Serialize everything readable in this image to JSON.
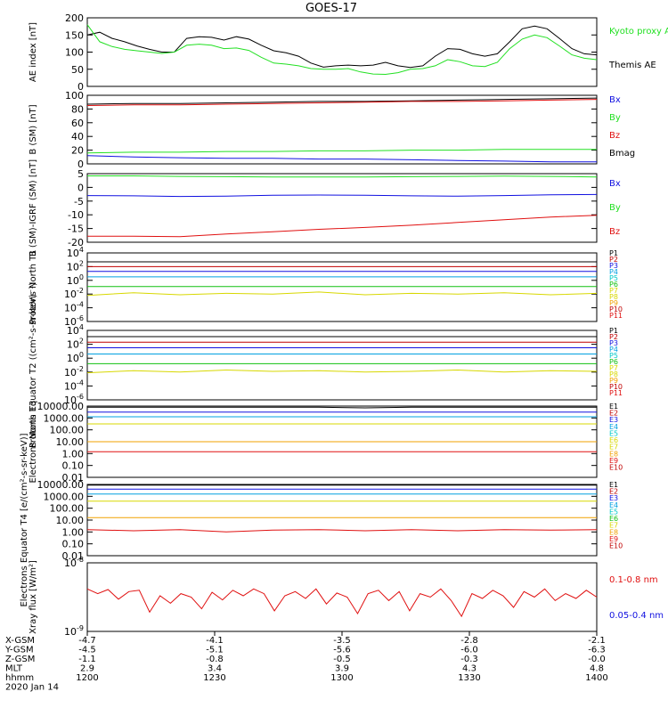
{
  "title": "GOES-17",
  "colors": {
    "black": "#000000",
    "green": "#22e022",
    "red": "#e01010",
    "blue": "#1010e0",
    "darkred": "#c00000",
    "navy": "#00008b",
    "cyan": "#00c8c8",
    "teal": "#00b0a0",
    "lime": "#10c010",
    "yellow": "#d8d800",
    "orange": "#f0a000",
    "maroon": "#c00000"
  },
  "chart_data": [
    {
      "type": "line",
      "ylabel": "AE index [nT]",
      "ylim": [
        0,
        200
      ],
      "y_ticks": [
        "0",
        "50",
        "100",
        "150",
        "200"
      ],
      "legend": [
        {
          "label": "Kyoto proxy AE",
          "color": "#22e022"
        },
        {
          "label": "Themis AE",
          "color": "#000000"
        }
      ],
      "series": [
        {
          "name": "Themis AE",
          "color": "#000000",
          "values": [
            150,
            158,
            140,
            130,
            118,
            108,
            100,
            100,
            140,
            145,
            143,
            135,
            145,
            138,
            120,
            104,
            98,
            88,
            68,
            56,
            60,
            62,
            60,
            62,
            70,
            60,
            55,
            60,
            88,
            110,
            108,
            95,
            88,
            95,
            130,
            168,
            176,
            168,
            140,
            110,
            95,
            92
          ]
        },
        {
          "name": "Kyoto proxy AE",
          "color": "#22e022",
          "values": [
            180,
            130,
            116,
            108,
            104,
            100,
            96,
            100,
            120,
            123,
            120,
            110,
            112,
            105,
            85,
            68,
            65,
            60,
            52,
            50,
            50,
            52,
            42,
            36,
            35,
            40,
            50,
            52,
            60,
            78,
            72,
            60,
            58,
            70,
            110,
            138,
            150,
            142,
            118,
            92,
            82,
            78
          ]
        }
      ]
    },
    {
      "type": "line",
      "ylabel": "B (SM) [nT]",
      "ylim": [
        0,
        100
      ],
      "y_ticks": [
        "0",
        "20",
        "40",
        "60",
        "80",
        "100"
      ],
      "legend": [
        {
          "label": "Bx",
          "color": "#1010e0"
        },
        {
          "label": "By",
          "color": "#22e022"
        },
        {
          "label": "Bz",
          "color": "#e01010"
        },
        {
          "label": "Bmag",
          "color": "#000000"
        }
      ],
      "series": [
        {
          "name": "Bmag",
          "color": "#000000",
          "values": [
            87,
            88,
            88,
            89,
            90,
            91,
            91,
            92,
            93,
            94,
            95,
            96
          ]
        },
        {
          "name": "Bz",
          "color": "#e01010",
          "values": [
            85,
            86,
            86,
            87,
            88,
            89,
            90,
            91,
            91,
            92,
            93,
            94
          ]
        },
        {
          "name": "By",
          "color": "#22e022",
          "values": [
            16,
            17,
            17,
            18,
            18,
            19,
            19,
            20,
            20,
            21,
            21,
            21
          ]
        },
        {
          "name": "Bx",
          "color": "#1010e0",
          "values": [
            12,
            10,
            9,
            8,
            8,
            7,
            7,
            6,
            5,
            4,
            3,
            3
          ]
        }
      ]
    },
    {
      "type": "line",
      "ylabel": "B (SM)-IGRF (SM) [nT]",
      "ylim": [
        -20,
        5
      ],
      "y_ticks": [
        "-20",
        "-15",
        "-10",
        "-5",
        "0",
        "5"
      ],
      "legend": [
        {
          "label": "Bx",
          "color": "#1010e0"
        },
        {
          "label": "By",
          "color": "#22e022"
        },
        {
          "label": "Bz",
          "color": "#e01010"
        }
      ],
      "series": [
        {
          "name": "By",
          "color": "#22e022",
          "values": [
            4.2,
            4.2,
            4.0,
            3.9,
            3.8,
            3.8,
            3.8,
            3.9,
            4.0,
            4.1,
            4.0,
            3.8
          ]
        },
        {
          "name": "Bx",
          "color": "#1010e0",
          "values": [
            -3.0,
            -3.1,
            -3.3,
            -3.2,
            -2.9,
            -2.8,
            -2.9,
            -3.1,
            -3.2,
            -3.0,
            -2.7,
            -2.6
          ]
        },
        {
          "name": "Bz",
          "color": "#e01010",
          "values": [
            -17.8,
            -17.8,
            -18.0,
            -17.0,
            -16.2,
            -15.3,
            -14.6,
            -13.8,
            -12.8,
            -11.8,
            -10.8,
            -10.2
          ]
        }
      ]
    },
    {
      "type": "line",
      "ylabel": "Protons North T1",
      "y_ticks": [
        "10^-6",
        "10^-4",
        "10^-2",
        "10^0",
        "10^2",
        "10^4"
      ],
      "yscale": "log",
      "legend": [
        {
          "label": "P1",
          "color": "#000000"
        },
        {
          "label": "P2",
          "color": "#c00000"
        },
        {
          "label": "P3",
          "color": "#1010e0"
        },
        {
          "label": "P4",
          "color": "#00a0e0"
        },
        {
          "label": "P5",
          "color": "#00c8c8"
        },
        {
          "label": "P6",
          "color": "#10c010"
        },
        {
          "label": "P7",
          "color": "#d8d800"
        },
        {
          "label": "P8",
          "color": "#d8d800"
        },
        {
          "label": "P9",
          "color": "#f0a000"
        },
        {
          "label": "P10",
          "color": "#c00000"
        },
        {
          "label": "P11",
          "color": "#e01010"
        }
      ],
      "series": [
        {
          "name": "P1",
          "color": "#000000",
          "values": [
            2.7,
            2.7,
            2.7,
            2.7,
            2.7,
            2.7,
            2.7,
            2.7,
            2.7,
            2.7,
            2.7,
            2.7
          ]
        },
        {
          "name": "P2",
          "color": "#c00000",
          "values": [
            2.0,
            2.0,
            2.0,
            2.0,
            2.0,
            2.0,
            2.0,
            2.0,
            2.0,
            2.0,
            2.0,
            2.0
          ]
        },
        {
          "name": "P3",
          "color": "#1010e0",
          "values": [
            1.3,
            1.3,
            1.3,
            1.3,
            1.3,
            1.3,
            1.3,
            1.3,
            1.3,
            1.3,
            1.3,
            1.3
          ]
        },
        {
          "name": "P4",
          "color": "#00a0e0",
          "values": [
            0.5,
            0.5,
            0.5,
            0.5,
            0.5,
            0.5,
            0.5,
            0.5,
            0.5,
            0.5,
            0.5,
            0.5
          ]
        },
        {
          "name": "P6",
          "color": "#10c010",
          "values": [
            -0.9,
            -0.9,
            -0.9,
            -0.9,
            -0.9,
            -0.9,
            -0.9,
            -0.9,
            -0.9,
            -0.9,
            -0.9,
            -0.9
          ]
        },
        {
          "name": "P7",
          "color": "#d8d800",
          "values": [
            -2.2,
            -1.8,
            -2.1,
            -1.9,
            -2.0,
            -1.7,
            -2.1,
            -1.9,
            -2.0,
            -1.8,
            -2.1,
            -1.9
          ]
        }
      ]
    },
    {
      "type": "line",
      "ylabel": "Protons Equator T2 ((cm²-s-sr-keV)⁻¹)",
      "y_ticks": [
        "10^-6",
        "10^-4",
        "10^-2",
        "10^0",
        "10^2",
        "10^4"
      ],
      "yscale": "log",
      "legend": [
        {
          "label": "P1",
          "color": "#000000"
        },
        {
          "label": "P2",
          "color": "#c00000"
        },
        {
          "label": "P3",
          "color": "#1010e0"
        },
        {
          "label": "P4",
          "color": "#00a0e0"
        },
        {
          "label": "P5",
          "color": "#00c8c8"
        },
        {
          "label": "P6",
          "color": "#10c010"
        },
        {
          "label": "P7",
          "color": "#d8d800"
        },
        {
          "label": "P8",
          "color": "#d8d800"
        },
        {
          "label": "P9",
          "color": "#f0a000"
        },
        {
          "label": "P10",
          "color": "#c00000"
        },
        {
          "label": "P11",
          "color": "#e01010"
        }
      ],
      "series": [
        {
          "name": "P1",
          "color": "#000000",
          "values": [
            3.1,
            3.1,
            3.1,
            3.1,
            3.1,
            3.1,
            3.1,
            3.1,
            3.1,
            3.1,
            3.1,
            3.1
          ]
        },
        {
          "name": "P2",
          "color": "#c00000",
          "values": [
            2.3,
            2.3,
            2.3,
            2.3,
            2.3,
            2.3,
            2.3,
            2.3,
            2.3,
            2.3,
            2.3,
            2.3
          ]
        },
        {
          "name": "P3",
          "color": "#1010e0",
          "values": [
            1.5,
            1.5,
            1.5,
            1.5,
            1.5,
            1.5,
            1.5,
            1.5,
            1.5,
            1.5,
            1.5,
            1.5
          ]
        },
        {
          "name": "P4",
          "color": "#00a0e0",
          "values": [
            0.6,
            0.6,
            0.6,
            0.6,
            0.6,
            0.6,
            0.6,
            0.6,
            0.6,
            0.6,
            0.6,
            0.6
          ]
        },
        {
          "name": "P6",
          "color": "#10c010",
          "values": [
            -0.8,
            -0.8,
            -0.8,
            -0.8,
            -0.8,
            -0.8,
            -0.8,
            -0.8,
            -0.8,
            -0.8,
            -0.8,
            -0.8
          ]
        },
        {
          "name": "P7",
          "color": "#d8d800",
          "values": [
            -2.1,
            -1.8,
            -2.0,
            -1.7,
            -1.9,
            -1.8,
            -2.0,
            -1.9,
            -1.7,
            -2.0,
            -1.8,
            -1.9
          ]
        }
      ]
    },
    {
      "type": "line",
      "ylabel": "Electrons North T3",
      "yscale": "log",
      "y_ticks": [
        "0.01",
        "0.10",
        "1.00",
        "10.00",
        "100.00",
        "1000.00",
        "10000.00"
      ],
      "legend": [
        {
          "label": "E1",
          "color": "#000000"
        },
        {
          "label": "E2",
          "color": "#c00000"
        },
        {
          "label": "E3",
          "color": "#1010e0"
        },
        {
          "label": "E4",
          "color": "#00a0e0"
        },
        {
          "label": "E5",
          "color": "#00c8c8"
        },
        {
          "label": "E6",
          "color": "#d8d800"
        },
        {
          "label": "E7",
          "color": "#d8d800"
        },
        {
          "label": "E8",
          "color": "#f0a000"
        },
        {
          "label": "E9",
          "color": "#e01010"
        },
        {
          "label": "E10",
          "color": "#c00000"
        }
      ],
      "series": [
        {
          "name": "E1",
          "color": "#000000",
          "values": [
            3.9,
            3.9,
            3.9,
            3.9,
            3.9,
            3.9,
            3.85,
            3.9,
            3.9,
            3.9,
            3.9,
            3.9
          ]
        },
        {
          "name": "E2",
          "color": "#1010e0",
          "values": [
            3.5,
            3.5,
            3.5,
            3.5,
            3.5,
            3.5,
            3.5,
            3.5,
            3.5,
            3.5,
            3.5,
            3.5
          ]
        },
        {
          "name": "E3",
          "color": "#00a0e0",
          "values": [
            3.1,
            3.1,
            3.1,
            3.1,
            3.1,
            3.1,
            3.1,
            3.1,
            3.1,
            3.1,
            3.1,
            3.1
          ]
        },
        {
          "name": "E4",
          "color": "#d8d800",
          "values": [
            2.5,
            2.5,
            2.5,
            2.5,
            2.5,
            2.5,
            2.5,
            2.5,
            2.5,
            2.5,
            2.5,
            2.5
          ]
        },
        {
          "name": "E5",
          "color": "#f0a000",
          "values": [
            1.0,
            1.0,
            1.0,
            1.0,
            1.0,
            1.0,
            1.0,
            1.0,
            1.0,
            1.0,
            1.0,
            1.0
          ]
        },
        {
          "name": "E6",
          "color": "#e01010",
          "values": [
            0.15,
            0.15,
            0.15,
            0.15,
            0.15,
            0.15,
            0.15,
            0.15,
            0.15,
            0.15,
            0.15,
            0.15
          ]
        }
      ]
    },
    {
      "type": "line",
      "ylabel": "Electrons Equator T4 [e/(cm²-s-sr-keV)]",
      "yscale": "log",
      "y_ticks": [
        "0.01",
        "0.10",
        "1.00",
        "10.00",
        "100.00",
        "1000.00",
        "10000.00"
      ],
      "legend": [
        {
          "label": "E1",
          "color": "#000000"
        },
        {
          "label": "E2",
          "color": "#c00000"
        },
        {
          "label": "E3",
          "color": "#1010e0"
        },
        {
          "label": "E4",
          "color": "#00a0e0"
        },
        {
          "label": "E5",
          "color": "#00c8c8"
        },
        {
          "label": "E6",
          "color": "#10c010"
        },
        {
          "label": "E7",
          "color": "#d8d800"
        },
        {
          "label": "E8",
          "color": "#f0a000"
        },
        {
          "label": "E9",
          "color": "#e01010"
        },
        {
          "label": "E10",
          "color": "#c00000"
        }
      ],
      "series": [
        {
          "name": "E1",
          "color": "#000000",
          "values": [
            3.95,
            3.95,
            3.95,
            3.95,
            3.95,
            3.95,
            3.95,
            3.95,
            3.95,
            3.95,
            3.95,
            3.95
          ]
        },
        {
          "name": "E2",
          "color": "#1010e0",
          "values": [
            3.6,
            3.6,
            3.6,
            3.6,
            3.6,
            3.6,
            3.6,
            3.6,
            3.6,
            3.6,
            3.6,
            3.6
          ]
        },
        {
          "name": "E3",
          "color": "#00a0e0",
          "values": [
            3.2,
            3.2,
            3.2,
            3.2,
            3.2,
            3.2,
            3.2,
            3.2,
            3.2,
            3.2,
            3.2,
            3.2
          ]
        },
        {
          "name": "E4",
          "color": "#d8d800",
          "values": [
            2.6,
            2.6,
            2.6,
            2.6,
            2.6,
            2.6,
            2.6,
            2.6,
            2.6,
            2.6,
            2.6,
            2.6
          ]
        },
        {
          "name": "E5",
          "color": "#f0a000",
          "values": [
            1.2,
            1.2,
            1.2,
            1.2,
            1.2,
            1.2,
            1.2,
            1.2,
            1.2,
            1.2,
            1.2,
            1.2
          ]
        },
        {
          "name": "E6",
          "color": "#e01010",
          "values": [
            0.2,
            0.1,
            0.2,
            0.0,
            0.15,
            0.2,
            0.1,
            0.2,
            0.1,
            0.2,
            0.15,
            0.2
          ]
        }
      ]
    },
    {
      "type": "line",
      "ylabel": "Xray flux [W/m²]",
      "yscale": "log",
      "y_ticks": [
        "10^-9",
        "10^-8"
      ],
      "legend": [
        {
          "label": "0.1-0.8 nm",
          "color": "#e01010"
        },
        {
          "label": "0.05-0.4 nm",
          "color": "#1010e0"
        }
      ],
      "series": [
        {
          "name": "0.1-0.8 nm",
          "color": "#e01010",
          "values": [
            0.62,
            0.55,
            0.61,
            0.47,
            0.58,
            0.6,
            0.28,
            0.52,
            0.41,
            0.55,
            0.5,
            0.33,
            0.57,
            0.46,
            0.6,
            0.52,
            0.62,
            0.55,
            0.3,
            0.52,
            0.58,
            0.48,
            0.62,
            0.4,
            0.56,
            0.5,
            0.26,
            0.55,
            0.6,
            0.45,
            0.58,
            0.3,
            0.55,
            0.5,
            0.62,
            0.45,
            0.22,
            0.55,
            0.48,
            0.6,
            0.52,
            0.35,
            0.58,
            0.5,
            0.62,
            0.45,
            0.55,
            0.48,
            0.6,
            0.5
          ]
        }
      ]
    }
  ],
  "x_axis": {
    "row_labels": [
      "X-GSM",
      "Y-GSM",
      "Z-GSM",
      "MLT",
      "hhmm"
    ],
    "columns": [
      [
        "-4.7",
        "-4.5",
        "-1.1",
        "2.9",
        "1200"
      ],
      [
        "-4.1",
        "-5.1",
        "-0.8",
        "3.4",
        "1230"
      ],
      [
        "-3.5",
        "-5.6",
        "-0.5",
        "3.9",
        "1300"
      ],
      [
        "-2.8",
        "-6.0",
        "-0.3",
        "4.3",
        "1330"
      ],
      [
        "-2.1",
        "-6.3",
        "-0.0",
        "4.8",
        "1400"
      ]
    ],
    "date": "2020 Jan 14"
  }
}
